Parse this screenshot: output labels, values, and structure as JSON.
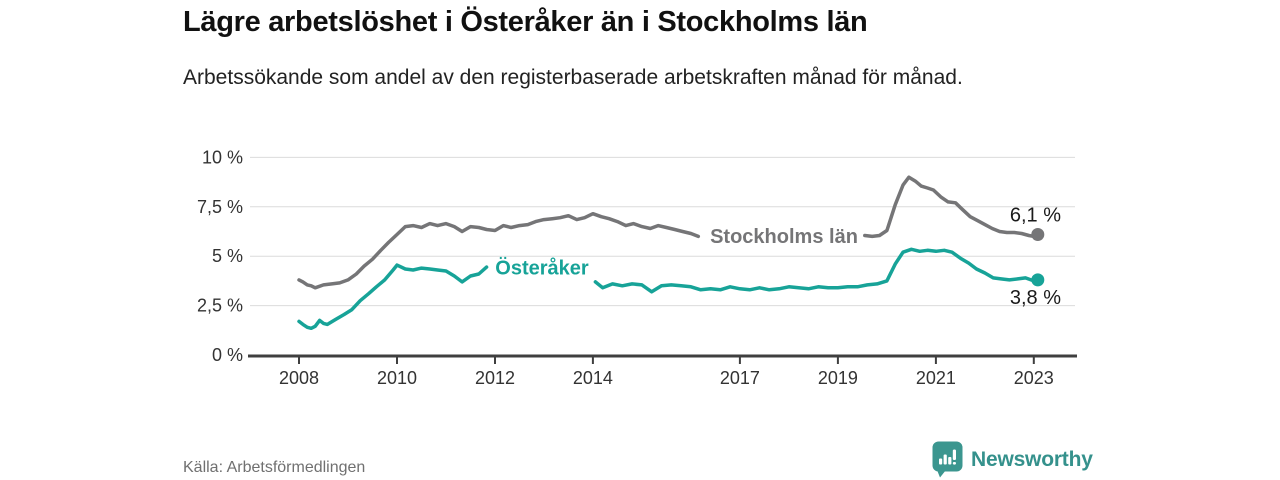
{
  "header": {
    "title": "Lägre arbetslöshet i Österåker än i Stockholms län",
    "subtitle": "Arbetssökande som andel av den registerbaserade arbetskraften månad för månad."
  },
  "footer": {
    "source": "Källa: Arbetsförmedlingen",
    "brand": "Newsworthy",
    "brand_icon": "bar-chart-speech-bubble-icon"
  },
  "colors": {
    "accent_teal": "#17A398",
    "line_gray": "#757577",
    "axis": "#3F3F3F",
    "grid": "#DCDCDC",
    "tick_label": "#333333",
    "value_label": "#1A1A1A",
    "logo_teal": "#3B968F",
    "wordmark_teal": "#35918C",
    "source_gray": "#707070"
  },
  "chart_data": {
    "type": "line",
    "title": "Lägre arbetslöshet i Österåker än i Stockholms län",
    "subtitle": "Arbetssökande som andel av den registerbaserade arbetskraften månad för månad.",
    "unit": "%",
    "grid": "horizontal",
    "legend_position": "inline-labels",
    "x_axis": {
      "min": 2007,
      "max": 2023.84,
      "ticks": [
        2008,
        2010,
        2012,
        2014,
        2017,
        2019,
        2021,
        2023
      ]
    },
    "y_axis": {
      "min": 0,
      "max": 10,
      "ticks": [
        0,
        2.5,
        5,
        7.5,
        10
      ],
      "tick_labels": [
        "0 %",
        "2,5 %",
        "5 %",
        "7,5 %",
        "10 %"
      ]
    },
    "series": [
      {
        "name": "Stockholms län",
        "color": "#757577",
        "end_value": 6.1,
        "end_label": "6,1 %",
        "end_label_position": "above",
        "inline_label": {
          "year": 2017.9,
          "pct": 6.02
        },
        "segments": [
          [
            [
              2008.0,
              3.8
            ],
            [
              2008.08,
              3.7
            ],
            [
              2008.17,
              3.55
            ],
            [
              2008.25,
              3.5
            ],
            [
              2008.33,
              3.4
            ],
            [
              2008.5,
              3.55
            ],
            [
              2008.67,
              3.6
            ],
            [
              2008.83,
              3.65
            ],
            [
              2009.0,
              3.8
            ],
            [
              2009.17,
              4.1
            ],
            [
              2009.33,
              4.5
            ],
            [
              2009.5,
              4.85
            ],
            [
              2009.67,
              5.3
            ],
            [
              2009.83,
              5.7
            ],
            [
              2010.0,
              6.1
            ],
            [
              2010.17,
              6.5
            ],
            [
              2010.33,
              6.55
            ],
            [
              2010.5,
              6.45
            ],
            [
              2010.67,
              6.65
            ],
            [
              2010.83,
              6.55
            ],
            [
              2011.0,
              6.65
            ],
            [
              2011.17,
              6.5
            ],
            [
              2011.33,
              6.25
            ],
            [
              2011.5,
              6.5
            ],
            [
              2011.67,
              6.45
            ],
            [
              2011.83,
              6.35
            ],
            [
              2012.0,
              6.3
            ],
            [
              2012.17,
              6.55
            ],
            [
              2012.33,
              6.45
            ],
            [
              2012.5,
              6.55
            ],
            [
              2012.67,
              6.6
            ],
            [
              2012.83,
              6.75
            ],
            [
              2013.0,
              6.85
            ],
            [
              2013.17,
              6.9
            ],
            [
              2013.33,
              6.95
            ],
            [
              2013.5,
              7.05
            ],
            [
              2013.67,
              6.85
            ],
            [
              2013.83,
              6.95
            ],
            [
              2014.0,
              7.15
            ],
            [
              2014.17,
              7.0
            ],
            [
              2014.33,
              6.9
            ],
            [
              2014.5,
              6.75
            ],
            [
              2014.67,
              6.55
            ],
            [
              2014.83,
              6.65
            ],
            [
              2015.0,
              6.5
            ],
            [
              2015.17,
              6.4
            ],
            [
              2015.33,
              6.55
            ],
            [
              2015.5,
              6.45
            ],
            [
              2015.67,
              6.35
            ],
            [
              2015.83,
              6.25
            ],
            [
              2016.0,
              6.15
            ],
            [
              2016.15,
              6.0
            ]
          ],
          [
            [
              2019.55,
              6.05
            ],
            [
              2019.7,
              6.0
            ],
            [
              2019.85,
              6.05
            ],
            [
              2020.0,
              6.3
            ],
            [
              2020.17,
              7.6
            ],
            [
              2020.33,
              8.6
            ],
            [
              2020.45,
              9.0
            ],
            [
              2020.58,
              8.8
            ],
            [
              2020.7,
              8.55
            ],
            [
              2020.83,
              8.45
            ],
            [
              2020.95,
              8.35
            ],
            [
              2021.1,
              8.0
            ],
            [
              2021.25,
              7.75
            ],
            [
              2021.4,
              7.7
            ],
            [
              2021.55,
              7.35
            ],
            [
              2021.7,
              7.0
            ],
            [
              2021.85,
              6.8
            ],
            [
              2022.0,
              6.6
            ],
            [
              2022.15,
              6.4
            ],
            [
              2022.3,
              6.25
            ],
            [
              2022.45,
              6.2
            ],
            [
              2022.6,
              6.2
            ],
            [
              2022.75,
              6.15
            ],
            [
              2022.9,
              6.05
            ],
            [
              2023.0,
              6.0
            ],
            [
              2023.08,
              6.1
            ]
          ]
        ]
      },
      {
        "name": "Österåker",
        "color": "#17A398",
        "end_value": 3.8,
        "end_label": "3,8 %",
        "end_label_position": "below",
        "inline_label": {
          "year": 2012.96,
          "pct": 4.42
        },
        "segments": [
          [
            [
              2008.0,
              1.7
            ],
            [
              2008.08,
              1.55
            ],
            [
              2008.17,
              1.4
            ],
            [
              2008.25,
              1.35
            ],
            [
              2008.33,
              1.45
            ],
            [
              2008.42,
              1.75
            ],
            [
              2008.5,
              1.6
            ],
            [
              2008.58,
              1.55
            ],
            [
              2008.75,
              1.8
            ],
            [
              2008.92,
              2.05
            ],
            [
              2009.08,
              2.3
            ],
            [
              2009.25,
              2.75
            ],
            [
              2009.42,
              3.1
            ],
            [
              2009.58,
              3.45
            ],
            [
              2009.75,
              3.8
            ],
            [
              2009.92,
              4.3
            ],
            [
              2010.0,
              4.55
            ],
            [
              2010.17,
              4.35
            ],
            [
              2010.33,
              4.3
            ],
            [
              2010.5,
              4.4
            ],
            [
              2010.67,
              4.35
            ],
            [
              2010.83,
              4.3
            ],
            [
              2011.0,
              4.25
            ],
            [
              2011.17,
              4.0
            ],
            [
              2011.33,
              3.7
            ],
            [
              2011.5,
              4.0
            ],
            [
              2011.67,
              4.1
            ],
            [
              2011.83,
              4.45
            ]
          ],
          [
            [
              2014.05,
              3.7
            ],
            [
              2014.2,
              3.4
            ],
            [
              2014.4,
              3.6
            ],
            [
              2014.6,
              3.5
            ],
            [
              2014.8,
              3.6
            ],
            [
              2015.0,
              3.55
            ],
            [
              2015.2,
              3.2
            ],
            [
              2015.4,
              3.5
            ],
            [
              2015.6,
              3.55
            ],
            [
              2015.8,
              3.5
            ],
            [
              2016.0,
              3.45
            ],
            [
              2016.2,
              3.3
            ],
            [
              2016.4,
              3.35
            ],
            [
              2016.6,
              3.3
            ],
            [
              2016.8,
              3.45
            ],
            [
              2017.0,
              3.35
            ],
            [
              2017.2,
              3.3
            ],
            [
              2017.4,
              3.4
            ],
            [
              2017.6,
              3.3
            ],
            [
              2017.8,
              3.35
            ],
            [
              2018.0,
              3.45
            ],
            [
              2018.2,
              3.4
            ],
            [
              2018.4,
              3.35
            ],
            [
              2018.6,
              3.45
            ],
            [
              2018.8,
              3.4
            ],
            [
              2019.0,
              3.4
            ],
            [
              2019.2,
              3.45
            ],
            [
              2019.4,
              3.45
            ],
            [
              2019.6,
              3.55
            ],
            [
              2019.8,
              3.6
            ],
            [
              2020.0,
              3.75
            ],
            [
              2020.17,
              4.6
            ],
            [
              2020.33,
              5.2
            ],
            [
              2020.5,
              5.35
            ],
            [
              2020.67,
              5.25
            ],
            [
              2020.83,
              5.3
            ],
            [
              2021.0,
              5.25
            ],
            [
              2021.17,
              5.3
            ],
            [
              2021.33,
              5.2
            ],
            [
              2021.5,
              4.9
            ],
            [
              2021.67,
              4.65
            ],
            [
              2021.83,
              4.35
            ],
            [
              2022.0,
              4.15
            ],
            [
              2022.17,
              3.9
            ],
            [
              2022.33,
              3.85
            ],
            [
              2022.5,
              3.8
            ],
            [
              2022.67,
              3.85
            ],
            [
              2022.83,
              3.9
            ],
            [
              2023.0,
              3.75
            ],
            [
              2023.08,
              3.8
            ]
          ]
        ]
      }
    ]
  }
}
